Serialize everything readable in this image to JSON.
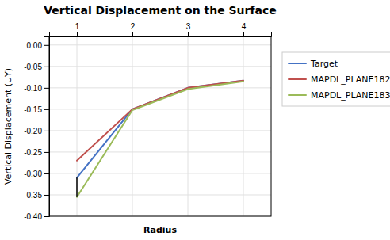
{
  "chart_data": {
    "type": "line",
    "title": "Vertical Displacement on the Surface",
    "x_label": "Radius",
    "y_label": "Vertical Displacement (UY)",
    "x": [
      1,
      2,
      3,
      4
    ],
    "series": [
      {
        "name": "Target",
        "color": "#4472C4",
        "values": [
          -0.31,
          -0.15,
          -0.1,
          -0.083
        ]
      },
      {
        "name": "MAPDL_PLANE182",
        "color": "#C0504D",
        "values": [
          -0.27,
          -0.15,
          -0.1,
          -0.083
        ]
      },
      {
        "name": "MAPDL_PLANE183",
        "color": "#9BBB59",
        "values": [
          -0.355,
          -0.152,
          -0.103,
          -0.085
        ]
      }
    ],
    "vline": {
      "x": 1,
      "y": [
        -0.355,
        -0.31
      ],
      "color": "#000000"
    },
    "xlim": [
      0.5,
      4.5
    ],
    "ylim": [
      -0.4,
      0.02
    ],
    "xticks": [
      1,
      2,
      3,
      4
    ],
    "yticks": [
      {
        "value": 0,
        "label": "0.00"
      },
      {
        "value": -0.05,
        "label": "-0.05"
      },
      {
        "value": -0.1,
        "label": "-0.10"
      },
      {
        "value": -0.15,
        "label": "-0.15"
      },
      {
        "value": -0.2,
        "label": "-0.20"
      },
      {
        "value": -0.25,
        "label": "-0.25"
      },
      {
        "value": -0.3,
        "label": "-0.30"
      },
      {
        "value": -0.35,
        "label": "-0.35"
      },
      {
        "value": -0.4,
        "label": "-0.40"
      }
    ],
    "grid": true,
    "legend": "right"
  }
}
